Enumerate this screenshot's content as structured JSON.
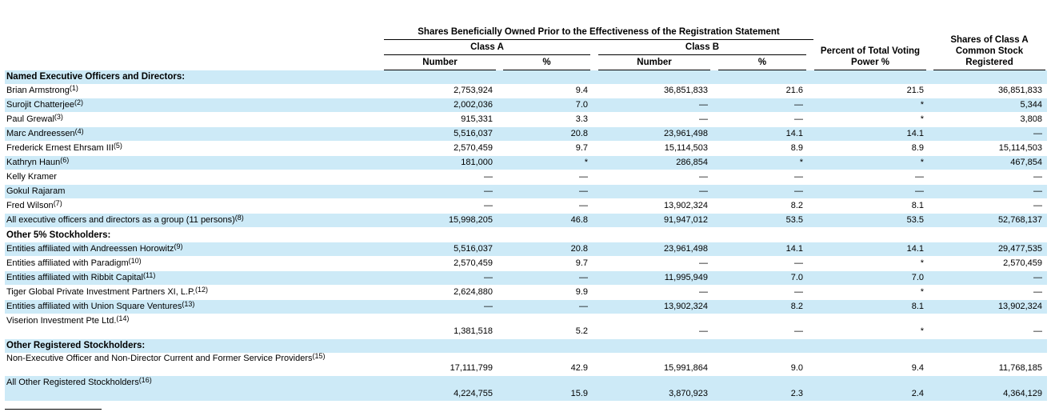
{
  "header": {
    "group_title": "Shares Beneficially Owned Prior to the Effectiveness of the Registration Statement",
    "class_a": "Class A",
    "class_b": "Class B",
    "number_a": "Number",
    "pct_a": "%",
    "number_b": "Number",
    "pct_b": "%",
    "voting": "Percent of Total Voting Power %",
    "registered": "Shares of Class A Common Stock Registered"
  },
  "sections": {
    "named": "Named Executive Officers and Directors:",
    "other5": "Other 5% Stockholders:",
    "registered": "Other Registered Stockholders:"
  },
  "rows": [
    {
      "name": "Brian Armstrong",
      "fn": "(1)",
      "a_num": "2,753,924",
      "a_pct": "9.4",
      "b_num": "36,851,833",
      "b_pct": "21.6",
      "vote": "21.5",
      "reg": "36,851,833"
    },
    {
      "name": "Surojit Chatterjee",
      "fn": "(2)",
      "a_num": "2,002,036",
      "a_pct": "7.0",
      "b_num": "—",
      "b_pct": "—",
      "vote": "*",
      "reg": "5,344"
    },
    {
      "name": "Paul Grewal",
      "fn": "(3)",
      "a_num": "915,331",
      "a_pct": "3.3",
      "b_num": "—",
      "b_pct": "—",
      "vote": "*",
      "reg": "3,808"
    },
    {
      "name": "Marc Andreessen",
      "fn": "(4)",
      "a_num": "5,516,037",
      "a_pct": "20.8",
      "b_num": "23,961,498",
      "b_pct": "14.1",
      "vote": "14.1",
      "reg": "—"
    },
    {
      "name": "Frederick Ernest Ehrsam III",
      "fn": "(5)",
      "a_num": "2,570,459",
      "a_pct": "9.7",
      "b_num": "15,114,503",
      "b_pct": "8.9",
      "vote": "8.9",
      "reg": "15,114,503"
    },
    {
      "name": "Kathryn Haun",
      "fn": "(6)",
      "a_num": "181,000",
      "a_pct": "*",
      "b_num": "286,854",
      "b_pct": "*",
      "vote": "*",
      "reg": "467,854"
    },
    {
      "name": "Kelly Kramer",
      "fn": "",
      "a_num": "—",
      "a_pct": "—",
      "b_num": "—",
      "b_pct": "—",
      "vote": "—",
      "reg": "—"
    },
    {
      "name": "Gokul Rajaram",
      "fn": "",
      "a_num": "—",
      "a_pct": "—",
      "b_num": "—",
      "b_pct": "—",
      "vote": "—",
      "reg": "—"
    },
    {
      "name": "Fred Wilson",
      "fn": "(7)",
      "a_num": "—",
      "a_pct": "—",
      "b_num": "13,902,324",
      "b_pct": "8.2",
      "vote": "8.1",
      "reg": "—"
    },
    {
      "name": "All executive officers and directors as a group (11 persons)",
      "fn": "(8)",
      "a_num": "15,998,205",
      "a_pct": "46.8",
      "b_num": "91,947,012",
      "b_pct": "53.5",
      "vote": "53.5",
      "reg": "52,768,137"
    },
    {
      "name": "Entities affiliated with Andreessen Horowitz",
      "fn": "(9)",
      "a_num": "5,516,037",
      "a_pct": "20.8",
      "b_num": "23,961,498",
      "b_pct": "14.1",
      "vote": "14.1",
      "reg": "29,477,535"
    },
    {
      "name": "Entities affiliated with Paradigm",
      "fn": "(10)",
      "a_num": "2,570,459",
      "a_pct": "9.7",
      "b_num": "—",
      "b_pct": "—",
      "vote": "*",
      "reg": "2,570,459"
    },
    {
      "name": "Entities affiliated with Ribbit Capital",
      "fn": "(11)",
      "a_num": "—",
      "a_pct": "—",
      "b_num": "11,995,949",
      "b_pct": "7.0",
      "vote": "7.0",
      "reg": "—"
    },
    {
      "name": "Tiger Global Private Investment Partners XI, L.P.",
      "fn": "(12)",
      "a_num": "2,624,880",
      "a_pct": "9.9",
      "b_num": "—",
      "b_pct": "—",
      "vote": "*",
      "reg": "—"
    },
    {
      "name": "Entities affiliated with Union Square Ventures",
      "fn": "(13)",
      "a_num": "—",
      "a_pct": "—",
      "b_num": "13,902,324",
      "b_pct": "8.2",
      "vote": "8.1",
      "reg": "13,902,324"
    },
    {
      "name": "Viserion Investment Pte Ltd.",
      "fn": "(14)",
      "a_num": "1,381,518",
      "a_pct": "5.2",
      "b_num": "—",
      "b_pct": "—",
      "vote": "*",
      "reg": "—"
    },
    {
      "name": "Non-Executive Officer and Non-Director Current and Former Service Providers",
      "fn": "(15)",
      "a_num": "17,111,799",
      "a_pct": "42.9",
      "b_num": "15,991,864",
      "b_pct": "9.0",
      "vote": "9.4",
      "reg": "11,768,185"
    },
    {
      "name": "All Other Registered Stockholders",
      "fn": "(16)",
      "a_num": "4,224,755",
      "a_pct": "15.9",
      "b_num": "3,870,923",
      "b_pct": "2.3",
      "vote": "2.4",
      "reg": "4,364,129"
    }
  ]
}
